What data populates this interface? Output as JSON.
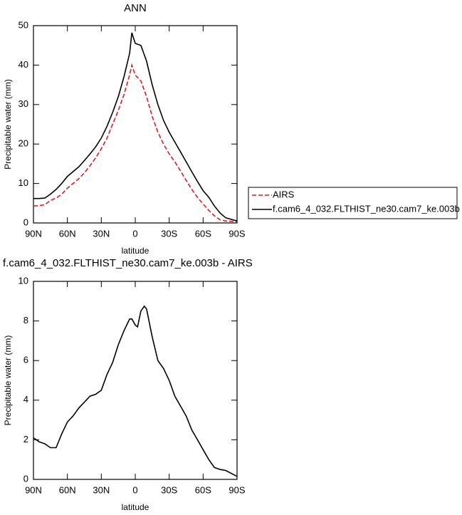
{
  "chart_data": [
    {
      "type": "line",
      "title": "ANN",
      "xlabel": "latitude",
      "ylabel": "Precipitable water (mm)",
      "x": [
        90,
        85,
        80,
        75,
        70,
        65,
        60,
        55,
        50,
        45,
        40,
        35,
        30,
        25,
        20,
        15,
        10,
        5,
        3,
        0,
        -5,
        -10,
        -15,
        -20,
        -25,
        -30,
        -35,
        -40,
        -45,
        -50,
        -55,
        -60,
        -65,
        -70,
        -75,
        -80,
        -85,
        -90
      ],
      "series": [
        {
          "name": "AIRS",
          "color": "#e41a1c",
          "style": "dashed",
          "values": [
            4.3,
            4.4,
            4.6,
            5.7,
            6.3,
            7.3,
            8.8,
            10,
            11.2,
            12.7,
            14.5,
            16.5,
            18.8,
            21.5,
            25,
            28.5,
            32.5,
            37.5,
            40,
            37.5,
            36,
            32,
            27,
            23,
            20,
            17.5,
            15.5,
            13.2,
            10.8,
            8.5,
            6.5,
            4.8,
            3.2,
            1.8,
            0.8,
            0.5,
            0.4,
            0.3
          ]
        },
        {
          "name": "f.cam6_4_032.FLTHIST_ne30.cam7_ke.003b",
          "color": "#000000",
          "style": "solid",
          "values": [
            6.2,
            6.2,
            6.3,
            7.3,
            8.5,
            10,
            11.8,
            13,
            14.2,
            15.8,
            17.5,
            19.3,
            21.5,
            24.5,
            28,
            32,
            37,
            43,
            48.2,
            45.5,
            45,
            41,
            35,
            30,
            26,
            23,
            20.5,
            18,
            15.5,
            13,
            10.5,
            8.2,
            6.5,
            4.3,
            2.5,
            1.3,
            0.9,
            0.5
          ]
        }
      ],
      "xlim": [
        90,
        -90
      ],
      "xticks": [
        {
          "value": 90,
          "label": "90N"
        },
        {
          "value": 60,
          "label": "60N"
        },
        {
          "value": 30,
          "label": "30N"
        },
        0,
        {
          "value": -30,
          "label": "30S"
        },
        {
          "value": -60,
          "label": "60S"
        },
        {
          "value": -90,
          "label": "90S"
        }
      ],
      "ylim": [
        0,
        50
      ],
      "yticks": [
        0,
        10,
        20,
        30,
        40,
        50
      ],
      "legend": "right"
    },
    {
      "type": "line",
      "title": "f.cam6_4_032.FLTHIST_ne30.cam7_ke.003b - AIRS",
      "xlabel": "latitude",
      "ylabel": "Precipitable water (mm)",
      "x": [
        90,
        85,
        80,
        75,
        70,
        65,
        60,
        55,
        50,
        45,
        40,
        35,
        30,
        25,
        20,
        15,
        10,
        5,
        3,
        0,
        -2,
        -5,
        -8,
        -10,
        -15,
        -20,
        -25,
        -30,
        -35,
        -40,
        -45,
        -50,
        -55,
        -60,
        -65,
        -70,
        -75,
        -80,
        -85,
        -90
      ],
      "values": [
        2.1,
        1.9,
        1.8,
        1.6,
        1.6,
        2.3,
        2.9,
        3.2,
        3.6,
        3.9,
        4.2,
        4.3,
        4.5,
        5.3,
        5.9,
        6.8,
        7.5,
        8.1,
        8.1,
        7.8,
        7.7,
        8.5,
        8.75,
        8.6,
        7.2,
        6.0,
        5.6,
        5.0,
        4.2,
        3.7,
        3.2,
        2.5,
        2.0,
        1.5,
        1.0,
        0.6,
        0.5,
        0.45,
        0.3,
        0.15
      ],
      "color": "#000000",
      "xlim": [
        90,
        -90
      ],
      "xticks": [
        {
          "value": 90,
          "label": "90N"
        },
        {
          "value": 60,
          "label": "60N"
        },
        {
          "value": 30,
          "label": "30N"
        },
        0,
        {
          "value": -30,
          "label": "30S"
        },
        {
          "value": -60,
          "label": "60S"
        },
        {
          "value": -90,
          "label": "90S"
        }
      ],
      "ylim": [
        0,
        10
      ],
      "yticks": [
        0,
        2,
        4,
        6,
        8,
        10
      ]
    }
  ]
}
